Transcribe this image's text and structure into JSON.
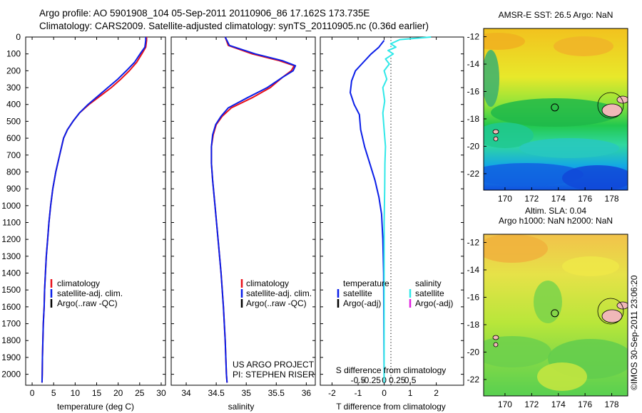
{
  "header": {
    "line1": "Argo profile: AO 5901908_104 05-Sep-2011 20110906_86 17.162S 173.735E",
    "line2": "Climatology: CARS2009. Satellite-adjusted climatology: synTS_20110905.nc (0.36d earlier)"
  },
  "colors": {
    "climatology": "#e8101a",
    "satellite": "#0a1ee8",
    "argo": "#000000",
    "cyan": "#30e8e8",
    "magenta": "#e020e0"
  },
  "depth_axis": {
    "ticks": [
      0,
      100,
      200,
      300,
      400,
      500,
      600,
      700,
      800,
      900,
      1000,
      1100,
      1200,
      1300,
      1400,
      1500,
      1600,
      1700,
      1800,
      1900,
      2000
    ],
    "range": [
      0,
      2065
    ]
  },
  "legends": {
    "profile": [
      "climatology",
      "satellite-adj. clim.",
      "Argo(..raw -QC)"
    ],
    "diff_temperature": [
      "temperature",
      "satellite",
      "Argo(-adj)"
    ],
    "diff_salinity": [
      "salinity",
      "satellite",
      "Argo(-adj)"
    ]
  },
  "project_note": [
    "US ARGO PROJECT",
    "PI: STEPHEN RISER"
  ],
  "watermark": "©IMOS 30-Sep-2011 23:06:20",
  "chart_data": [
    {
      "type": "line",
      "id": "temperature",
      "xlabel": "temperature (deg C)",
      "xlim": [
        -1.5,
        31
      ],
      "xticks": [
        0,
        5,
        10,
        15,
        20,
        25,
        30
      ],
      "ylim": [
        0,
        2065
      ],
      "y_inverted": true,
      "series": [
        {
          "name": "climatology",
          "color": "climatology",
          "points": [
            [
              26.6,
              0
            ],
            [
              26.6,
              20
            ],
            [
              26.4,
              60
            ],
            [
              25.5,
              100
            ],
            [
              24.3,
              150
            ],
            [
              22.6,
              200
            ],
            [
              20.6,
              250
            ],
            [
              18.4,
              300
            ],
            [
              15.8,
              350
            ],
            [
              13.2,
              400
            ],
            [
              11.0,
              450
            ],
            [
              9.5,
              500
            ],
            [
              8.2,
              550
            ],
            [
              7.3,
              600
            ],
            [
              6.4,
              700
            ],
            [
              5.5,
              800
            ],
            [
              4.8,
              900
            ],
            [
              4.3,
              1000
            ],
            [
              3.9,
              1100
            ],
            [
              3.6,
              1200
            ],
            [
              3.3,
              1300
            ],
            [
              3.1,
              1400
            ],
            [
              2.9,
              1500
            ],
            [
              2.8,
              1600
            ],
            [
              2.6,
              1700
            ],
            [
              2.5,
              1800
            ],
            [
              2.4,
              1900
            ],
            [
              2.35,
              2000
            ],
            [
              2.3,
              2050
            ]
          ]
        },
        {
          "name": "satellite-adj. clim.",
          "color": "satellite",
          "points": [
            [
              26.4,
              0
            ],
            [
              26.4,
              20
            ],
            [
              26.2,
              60
            ],
            [
              25.1,
              100
            ],
            [
              23.8,
              150
            ],
            [
              21.9,
              200
            ],
            [
              19.9,
              250
            ],
            [
              17.6,
              300
            ],
            [
              15.3,
              350
            ],
            [
              13.0,
              400
            ],
            [
              11.0,
              450
            ],
            [
              9.5,
              500
            ],
            [
              8.2,
              550
            ],
            [
              7.3,
              600
            ],
            [
              6.4,
              700
            ],
            [
              5.5,
              800
            ],
            [
              4.8,
              900
            ],
            [
              4.3,
              1000
            ],
            [
              3.9,
              1100
            ],
            [
              3.6,
              1200
            ],
            [
              3.3,
              1300
            ],
            [
              3.1,
              1400
            ],
            [
              2.9,
              1500
            ],
            [
              2.8,
              1600
            ],
            [
              2.6,
              1700
            ],
            [
              2.5,
              1800
            ],
            [
              2.4,
              1900
            ],
            [
              2.35,
              2000
            ],
            [
              2.3,
              2050
            ]
          ]
        }
      ]
    },
    {
      "type": "line",
      "id": "salinity",
      "xlabel": "salinity",
      "xlim": [
        33.75,
        36.15
      ],
      "xticks": [
        34,
        34.5,
        35,
        35.5,
        36
      ],
      "ylim": [
        0,
        2065
      ],
      "y_inverted": true,
      "series": [
        {
          "name": "climatology",
          "color": "climatology",
          "points": [
            [
              34.65,
              0
            ],
            [
              34.7,
              50
            ],
            [
              35.1,
              100
            ],
            [
              35.55,
              140
            ],
            [
              35.8,
              170
            ],
            [
              35.75,
              200
            ],
            [
              35.6,
              240
            ],
            [
              35.4,
              300
            ],
            [
              35.1,
              360
            ],
            [
              34.75,
              420
            ],
            [
              34.6,
              470
            ],
            [
              34.5,
              520
            ],
            [
              34.45,
              580
            ],
            [
              34.42,
              650
            ],
            [
              34.42,
              750
            ],
            [
              34.44,
              850
            ],
            [
              34.48,
              1000
            ],
            [
              34.53,
              1200
            ],
            [
              34.58,
              1400
            ],
            [
              34.62,
              1600
            ],
            [
              34.65,
              1800
            ],
            [
              34.67,
              2000
            ],
            [
              34.68,
              2050
            ]
          ]
        },
        {
          "name": "satellite-adj. clim.",
          "color": "satellite",
          "points": [
            [
              34.65,
              0
            ],
            [
              34.72,
              50
            ],
            [
              35.15,
              100
            ],
            [
              35.6,
              140
            ],
            [
              35.82,
              170
            ],
            [
              35.78,
              200
            ],
            [
              35.6,
              240
            ],
            [
              35.35,
              300
            ],
            [
              35.02,
              360
            ],
            [
              34.7,
              420
            ],
            [
              34.58,
              470
            ],
            [
              34.49,
              520
            ],
            [
              34.44,
              580
            ],
            [
              34.42,
              650
            ],
            [
              34.42,
              750
            ],
            [
              34.44,
              850
            ],
            [
              34.48,
              1000
            ],
            [
              34.53,
              1200
            ],
            [
              34.58,
              1400
            ],
            [
              34.62,
              1600
            ],
            [
              34.65,
              1800
            ],
            [
              34.67,
              2000
            ],
            [
              34.68,
              2050
            ]
          ]
        }
      ]
    },
    {
      "type": "line",
      "id": "difference",
      "xlabel": "T difference from climatology",
      "xlabel_top": "S difference from climatology",
      "xlim": [
        -2.45,
        3.05
      ],
      "xticks": [
        -2,
        -1,
        0,
        1,
        2
      ],
      "xticks_top": [
        -0.5,
        -0.25,
        0,
        0.25,
        0.5
      ],
      "ylim": [
        0,
        2065
      ],
      "y_inverted": true,
      "series": [
        {
          "name": "temperature satellite",
          "color": "satellite",
          "points": [
            [
              0.0,
              20
            ],
            [
              -0.2,
              60
            ],
            [
              -0.5,
              100
            ],
            [
              -0.8,
              150
            ],
            [
              -1.1,
              200
            ],
            [
              -1.25,
              260
            ],
            [
              -1.3,
              330
            ],
            [
              -1.15,
              400
            ],
            [
              -0.95,
              460
            ],
            [
              -0.9,
              550
            ],
            [
              -0.75,
              650
            ],
            [
              -0.55,
              750
            ],
            [
              -0.35,
              850
            ],
            [
              -0.2,
              950
            ],
            [
              -0.1,
              1050
            ],
            [
              -0.05,
              1200
            ],
            [
              -0.02,
              1400
            ],
            [
              0.0,
              2050
            ]
          ]
        },
        {
          "name": "salinity satellite",
          "color": "cyan",
          "points": [
            [
              1.8,
              0
            ],
            [
              0.6,
              15
            ],
            [
              0.25,
              40
            ],
            [
              0.45,
              60
            ],
            [
              0.15,
              80
            ],
            [
              0.35,
              100
            ],
            [
              0.05,
              130
            ],
            [
              0.2,
              160
            ],
            [
              0.0,
              200
            ],
            [
              0.1,
              250
            ],
            [
              -0.05,
              300
            ],
            [
              0.02,
              380
            ],
            [
              -0.05,
              450
            ],
            [
              0.0,
              550
            ],
            [
              0.05,
              650
            ],
            [
              0.03,
              750
            ],
            [
              0.02,
              900
            ],
            [
              0.0,
              1100
            ],
            [
              0.0,
              2050
            ]
          ]
        }
      ]
    },
    {
      "type": "heatmap",
      "id": "sst-map",
      "title": "AMSR-E SST: 26.5 Argo: NaN",
      "xlim": [
        168.4,
        179.2
      ],
      "ylim": [
        -23.2,
        -11.4
      ],
      "xticks": [
        170,
        172,
        174,
        176,
        178
      ],
      "yticks": [
        -12,
        -14,
        -16,
        -18,
        -20,
        -22
      ],
      "float_position": [
        173.735,
        -17.162
      ]
    },
    {
      "type": "heatmap",
      "id": "sla-map",
      "title": "Altim. SLA: 0.04",
      "subtitle": "Argo h1000: NaN h2000: NaN",
      "xlim": [
        168.4,
        179.2
      ],
      "ylim": [
        -23.2,
        -11.4
      ],
      "xticks": [
        170,
        172,
        174,
        176,
        178
      ],
      "yticks": [
        -12,
        -14,
        -16,
        -18,
        -20,
        -22
      ],
      "float_position": [
        173.735,
        -17.162
      ]
    }
  ]
}
